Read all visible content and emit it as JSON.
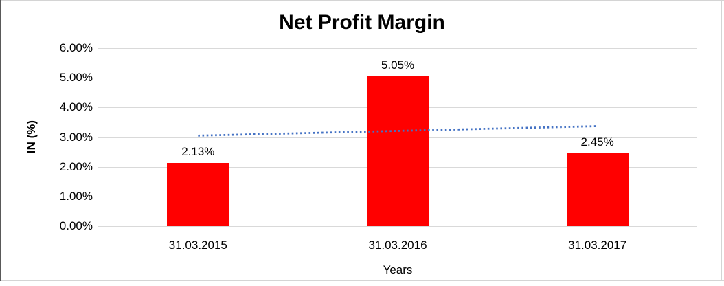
{
  "window": {
    "background": "#FFFFFF",
    "border_left_color": "#595959",
    "border_color": "#D4D4D4"
  },
  "chart_data": {
    "type": "bar",
    "title": "Net Profit Margin",
    "categories": [
      "31.03.2015",
      "31.03.2016",
      "31.03.2017"
    ],
    "values": [
      2.13,
      5.05,
      2.45
    ],
    "data_labels": [
      "2.13%",
      "5.05%",
      "2.45%"
    ],
    "xlabel": "Years",
    "ylabel": "IN (%)",
    "ylim": [
      0,
      6
    ],
    "ytick_step": 1,
    "ytick_labels": [
      "0.00%",
      "1.00%",
      "2.00%",
      "3.00%",
      "4.00%",
      "5.00%",
      "6.00%"
    ],
    "grid": true,
    "legend": false,
    "bar_color": "#FF0000",
    "gridline_color": "#D9D9D9",
    "axis_text_color": "#000000",
    "trendline": {
      "type": "linear",
      "style": "dotted",
      "color": "#4472C4",
      "start_value": 3.05,
      "end_value": 3.37
    }
  }
}
